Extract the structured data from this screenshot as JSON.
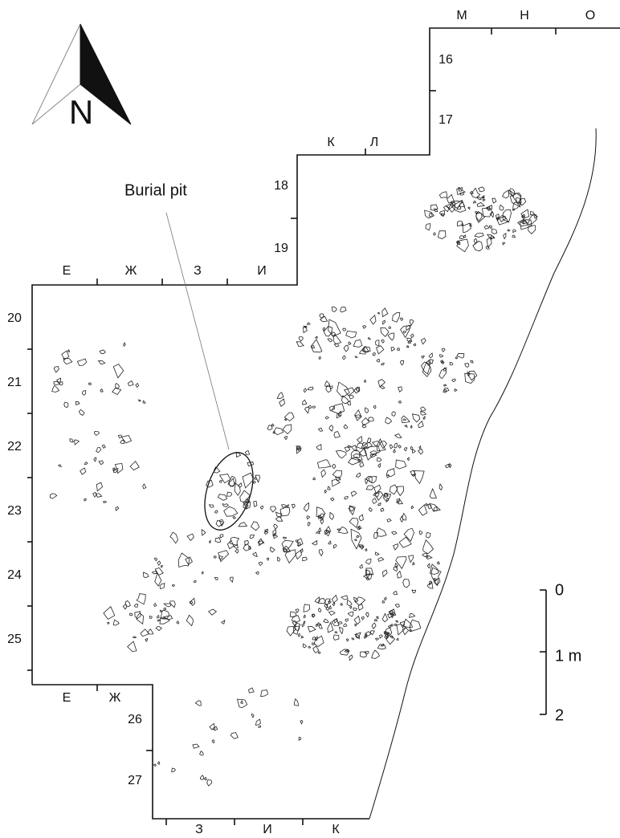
{
  "north": "N",
  "annotation": "Burial pit",
  "columns_top_right": [
    "М",
    "Н",
    "О"
  ],
  "columns_middle": [
    "К",
    "Л"
  ],
  "columns_upper_left": [
    "Е",
    "Ж",
    "З",
    "И"
  ],
  "columns_lower_left": [
    "Е",
    "Ж"
  ],
  "columns_bottom": [
    "З",
    "И",
    "К"
  ],
  "rows_right": [
    "16",
    "17"
  ],
  "rows_middle": [
    "18",
    "19"
  ],
  "rows_left": [
    "20",
    "21",
    "22",
    "23",
    "24",
    "25"
  ],
  "rows_lower": [
    "26",
    "27"
  ],
  "scale_labels": [
    "0",
    "1 m",
    "2"
  ]
}
